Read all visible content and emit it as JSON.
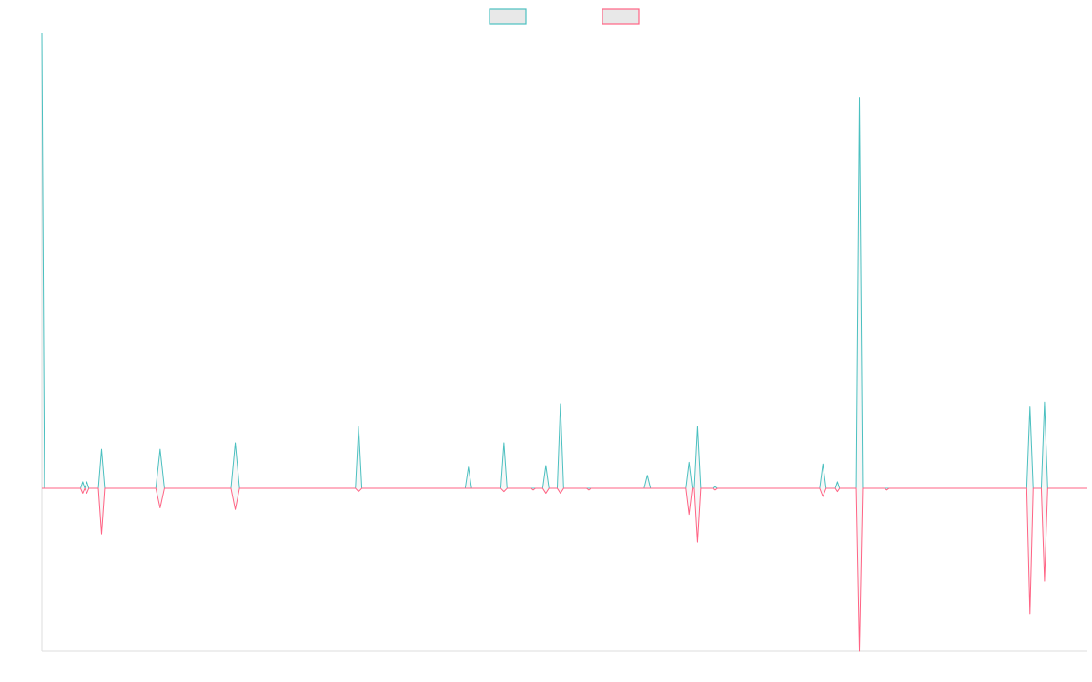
{
  "chart_data": {
    "type": "line",
    "title": "",
    "xlabel": "",
    "ylabel": "",
    "legend_position": "top-center",
    "grid": false,
    "x_range": [
      0,
      100
    ],
    "y_range": [
      -100,
      280
    ],
    "series": [
      {
        "color": "#4bc0c0",
        "fill": "#e8e8e8",
        "points": [
          [
            0,
            280
          ],
          [
            0.25,
            0
          ],
          [
            3.7,
            0
          ],
          [
            3.9,
            4
          ],
          [
            4.1,
            0
          ],
          [
            4.3,
            4
          ],
          [
            4.5,
            0
          ],
          [
            5.4,
            0
          ],
          [
            5.7,
            24
          ],
          [
            6.0,
            0
          ],
          [
            10.9,
            0
          ],
          [
            11.3,
            24
          ],
          [
            11.7,
            0
          ],
          [
            18.1,
            0
          ],
          [
            18.5,
            28
          ],
          [
            18.9,
            0
          ],
          [
            30.0,
            0
          ],
          [
            30.3,
            38
          ],
          [
            30.6,
            0
          ],
          [
            40.5,
            0
          ],
          [
            40.8,
            13
          ],
          [
            41.1,
            0
          ],
          [
            43.9,
            0
          ],
          [
            44.2,
            28
          ],
          [
            44.5,
            0
          ],
          [
            47.9,
            0
          ],
          [
            48.2,
            14
          ],
          [
            48.5,
            0
          ],
          [
            49.3,
            0
          ],
          [
            49.6,
            52
          ],
          [
            49.9,
            0
          ],
          [
            57.6,
            0
          ],
          [
            57.9,
            8
          ],
          [
            58.2,
            0
          ],
          [
            61.6,
            0
          ],
          [
            61.9,
            16
          ],
          [
            62.2,
            0
          ],
          [
            62.4,
            0
          ],
          [
            62.7,
            38
          ],
          [
            63.0,
            0
          ],
          [
            64.2,
            0
          ],
          [
            64.4,
            1
          ],
          [
            64.6,
            0
          ],
          [
            74.4,
            0
          ],
          [
            74.7,
            15
          ],
          [
            75.0,
            0
          ],
          [
            75.9,
            0
          ],
          [
            76.1,
            4
          ],
          [
            76.3,
            0
          ],
          [
            77.9,
            0
          ],
          [
            78.2,
            240
          ],
          [
            78.5,
            0
          ],
          [
            94.2,
            0
          ],
          [
            94.5,
            50
          ],
          [
            94.8,
            0
          ],
          [
            95.6,
            0
          ],
          [
            95.9,
            53
          ],
          [
            96.2,
            0
          ],
          [
            100,
            0
          ]
        ]
      },
      {
        "color": "#ff6384",
        "fill": "#e8e8e8",
        "points": [
          [
            0,
            0
          ],
          [
            3.7,
            0
          ],
          [
            3.9,
            -3
          ],
          [
            4.1,
            0
          ],
          [
            4.3,
            -3
          ],
          [
            4.5,
            0
          ],
          [
            5.4,
            0
          ],
          [
            5.7,
            -28
          ],
          [
            6.0,
            0
          ],
          [
            10.9,
            0
          ],
          [
            11.3,
            -12
          ],
          [
            11.7,
            0
          ],
          [
            18.1,
            0
          ],
          [
            18.5,
            -13
          ],
          [
            18.9,
            0
          ],
          [
            30.0,
            0
          ],
          [
            30.3,
            -2
          ],
          [
            30.6,
            0
          ],
          [
            43.9,
            0
          ],
          [
            44.2,
            -2
          ],
          [
            44.5,
            0
          ],
          [
            46.8,
            0
          ],
          [
            47.0,
            -1
          ],
          [
            47.2,
            0
          ],
          [
            47.9,
            0
          ],
          [
            48.2,
            -3
          ],
          [
            48.5,
            0
          ],
          [
            49.3,
            0
          ],
          [
            49.6,
            -3
          ],
          [
            49.9,
            0
          ],
          [
            52.1,
            0
          ],
          [
            52.3,
            -1
          ],
          [
            52.5,
            0
          ],
          [
            61.6,
            0
          ],
          [
            61.9,
            -16
          ],
          [
            62.2,
            0
          ],
          [
            62.4,
            0
          ],
          [
            62.7,
            -33
          ],
          [
            63.0,
            0
          ],
          [
            64.2,
            0
          ],
          [
            64.4,
            -1
          ],
          [
            64.6,
            0
          ],
          [
            74.4,
            0
          ],
          [
            74.7,
            -5
          ],
          [
            75.0,
            0
          ],
          [
            75.9,
            0
          ],
          [
            76.1,
            -2
          ],
          [
            76.3,
            0
          ],
          [
            77.9,
            0
          ],
          [
            78.2,
            -100
          ],
          [
            78.5,
            0
          ],
          [
            80.6,
            0
          ],
          [
            80.8,
            -1
          ],
          [
            81.0,
            0
          ],
          [
            94.2,
            0
          ],
          [
            94.5,
            -77
          ],
          [
            94.8,
            0
          ],
          [
            95.6,
            0
          ],
          [
            95.9,
            -57
          ],
          [
            96.2,
            0
          ],
          [
            100,
            0
          ]
        ]
      }
    ]
  }
}
